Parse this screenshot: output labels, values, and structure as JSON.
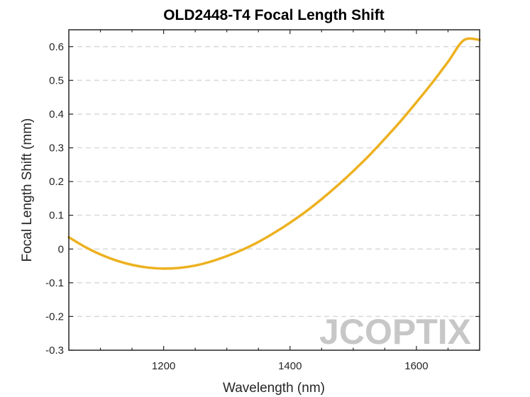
{
  "chart_data": {
    "type": "line",
    "title": "OLD2448-T4 Focal Length Shift",
    "xlabel": "Wavelength (nm)",
    "ylabel": "Focal Length Shift (mm)",
    "xlim": [
      1050,
      1700
    ],
    "ylim": [
      -0.3,
      0.65
    ],
    "xticks": [
      1200,
      1400,
      1600
    ],
    "yticks": [
      -0.3,
      -0.2,
      -0.1,
      0,
      0.1,
      0.2,
      0.3,
      0.4,
      0.5,
      0.6
    ],
    "grid": "horizontal dashed",
    "watermark": "JCOPTIX",
    "series": [
      {
        "color": "#EDB120",
        "x": [
          1050,
          1075,
          1100,
          1125,
          1150,
          1175,
          1200,
          1225,
          1250,
          1275,
          1300,
          1325,
          1350,
          1375,
          1400,
          1425,
          1450,
          1475,
          1500,
          1525,
          1550,
          1575,
          1600,
          1625,
          1650,
          1675,
          1700
        ],
        "y": [
          0.035,
          0.007,
          -0.016,
          -0.034,
          -0.047,
          -0.055,
          -0.058,
          -0.056,
          -0.049,
          -0.037,
          -0.021,
          -0.002,
          0.021,
          0.048,
          0.078,
          0.111,
          0.148,
          0.188,
          0.231,
          0.277,
          0.327,
          0.379,
          0.435,
          0.493,
          0.555,
          0.619,
          0.62
        ]
      }
    ]
  }
}
